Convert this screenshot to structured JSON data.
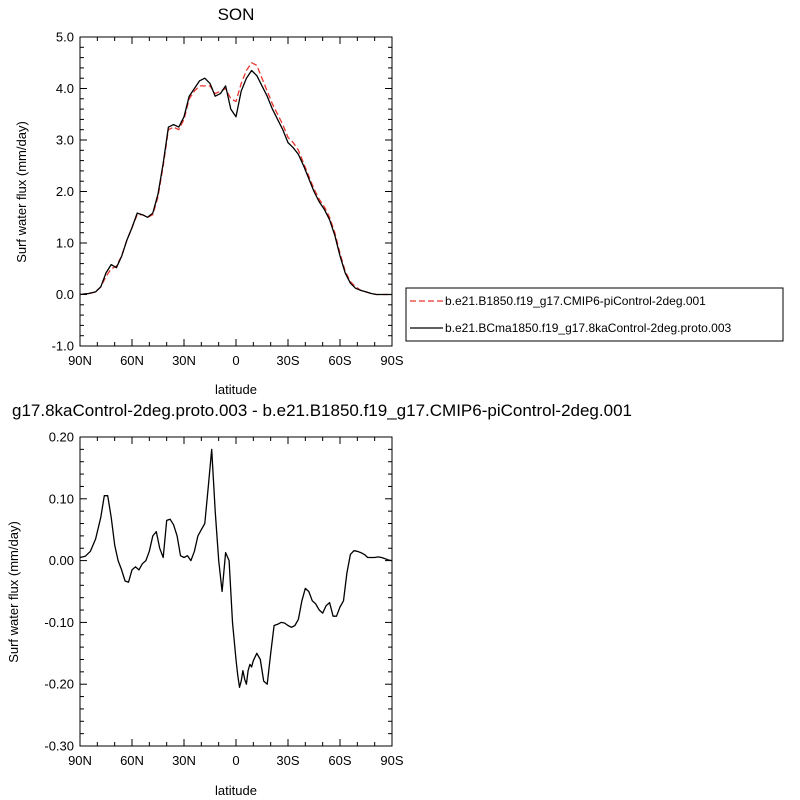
{
  "chart_data": [
    {
      "type": "line",
      "title": "SON",
      "xlabel": "latitude",
      "ylabel": "Surf water flux (mm/day)",
      "xlim": [
        90,
        -90
      ],
      "ylim": [
        -1.0,
        5.0
      ],
      "x_ticks": [
        90,
        60,
        30,
        0,
        -30,
        -60,
        -90
      ],
      "x_tick_labels": [
        "90N",
        "60N",
        "30N",
        "0",
        "30S",
        "60S",
        "90S"
      ],
      "y_ticks": [
        -1.0,
        0.0,
        1.0,
        2.0,
        3.0,
        4.0,
        5.0
      ],
      "y_tick_labels": [
        "-1.0",
        "0.0",
        "1.0",
        "2.0",
        "3.0",
        "4.0",
        "5.0"
      ],
      "legend_position": "right",
      "series": [
        {
          "name": "b.e21.B1850.f19_g17.CMIP6-piControl-2deg.001",
          "color": "#e8352e",
          "dash": "dashed",
          "x": [
            90,
            85,
            81,
            78,
            75,
            72,
            69,
            66,
            63,
            60,
            57,
            54,
            51,
            48,
            45,
            42,
            39,
            36,
            33,
            30,
            27,
            24,
            21,
            18,
            15,
            12,
            9,
            6,
            3,
            0,
            -3,
            -6,
            -9,
            -12,
            -15,
            -18,
            -21,
            -24,
            -27,
            -30,
            -33,
            -36,
            -39,
            -42,
            -45,
            -48,
            -51,
            -54,
            -57,
            -60,
            -63,
            -66,
            -69,
            -72,
            -75,
            -78,
            -81,
            -84,
            -87,
            -90
          ],
          "y": [
            0.0,
            0.02,
            0.05,
            0.15,
            0.35,
            0.5,
            0.55,
            0.75,
            1.05,
            1.3,
            1.55,
            1.55,
            1.5,
            1.55,
            1.9,
            2.5,
            3.2,
            3.25,
            3.2,
            3.4,
            3.8,
            3.95,
            4.05,
            4.05,
            4.05,
            3.9,
            3.95,
            4.0,
            3.8,
            3.75,
            4.1,
            4.35,
            4.5,
            4.45,
            4.2,
            3.95,
            3.7,
            3.5,
            3.3,
            3.05,
            2.95,
            2.8,
            2.55,
            2.3,
            2.05,
            1.85,
            1.7,
            1.5,
            1.2,
            0.8,
            0.45,
            0.25,
            0.15,
            0.08,
            0.05,
            0.02,
            0.0,
            0.0,
            0.0,
            0.0
          ]
        },
        {
          "name": "b.e21.BCma1850.f19_g17.8kaControl-2deg.proto.003",
          "color": "#000000",
          "dash": "solid",
          "x": [
            90,
            85,
            81,
            78,
            75,
            72,
            69,
            66,
            63,
            60,
            57,
            54,
            51,
            48,
            45,
            42,
            39,
            36,
            33,
            30,
            27,
            24,
            21,
            18,
            15,
            12,
            9,
            6,
            3,
            0,
            -3,
            -6,
            -9,
            -12,
            -15,
            -18,
            -21,
            -24,
            -27,
            -30,
            -33,
            -36,
            -39,
            -42,
            -45,
            -48,
            -51,
            -54,
            -57,
            -60,
            -63,
            -66,
            -69,
            -72,
            -75,
            -78,
            -81,
            -84,
            -87,
            -90
          ],
          "y": [
            0.0,
            0.02,
            0.05,
            0.15,
            0.42,
            0.58,
            0.52,
            0.74,
            1.05,
            1.3,
            1.58,
            1.55,
            1.5,
            1.58,
            1.95,
            2.55,
            3.25,
            3.3,
            3.25,
            3.45,
            3.85,
            4.0,
            4.15,
            4.2,
            4.1,
            3.85,
            3.9,
            4.05,
            3.6,
            3.45,
            3.95,
            4.2,
            4.35,
            4.25,
            4.05,
            3.85,
            3.6,
            3.4,
            3.2,
            2.95,
            2.85,
            2.72,
            2.5,
            2.25,
            2.0,
            1.8,
            1.65,
            1.45,
            1.15,
            0.75,
            0.42,
            0.22,
            0.12,
            0.08,
            0.05,
            0.02,
            0.0,
            0.0,
            0.0,
            0.0
          ]
        }
      ]
    },
    {
      "type": "line",
      "title": "g17.8kaControl-2deg.proto.003 - b.e21.B1850.f19_g17.CMIP6-piControl-2deg.001",
      "xlabel": "latitude",
      "ylabel": "Surf water flux (mm/day)",
      "xlim": [
        90,
        -90
      ],
      "ylim": [
        -0.3,
        0.2
      ],
      "x_ticks": [
        90,
        60,
        30,
        0,
        -30,
        -60,
        -90
      ],
      "x_tick_labels": [
        "90N",
        "60N",
        "30N",
        "0",
        "30S",
        "60S",
        "90S"
      ],
      "y_ticks": [
        -0.3,
        -0.2,
        -0.1,
        0.0,
        0.1,
        0.2
      ],
      "y_tick_labels": [
        "-0.30",
        "-0.20",
        "-0.10",
        "0.00",
        "0.10",
        "0.20"
      ],
      "series": [
        {
          "color": "#000000",
          "dash": "solid",
          "x": [
            90,
            87,
            84,
            81,
            78,
            76,
            74,
            72,
            70,
            68,
            66,
            64,
            62,
            60,
            58,
            56,
            54,
            52,
            50,
            48,
            46,
            44,
            42,
            40,
            38,
            36,
            34,
            32,
            30,
            28,
            26,
            24,
            22,
            20,
            18,
            16,
            15,
            14,
            12,
            10,
            8,
            6,
            4,
            2,
            0,
            -1,
            -2,
            -3,
            -4,
            -5,
            -6,
            -7,
            -8,
            -9,
            -10,
            -12,
            -14,
            -16,
            -18,
            -20,
            -22,
            -24,
            -26,
            -28,
            -30,
            -32,
            -34,
            -36,
            -38,
            -40,
            -42,
            -44,
            -46,
            -48,
            -50,
            -52,
            -54,
            -56,
            -58,
            -60,
            -62,
            -64,
            -66,
            -68,
            -70,
            -72,
            -74,
            -76,
            -78,
            -80,
            -82,
            -84,
            -86,
            -88,
            -90
          ],
          "y": [
            0.005,
            0.007,
            0.015,
            0.035,
            0.07,
            0.105,
            0.105,
            0.07,
            0.025,
            0.0,
            -0.015,
            -0.033,
            -0.035,
            -0.015,
            -0.01,
            -0.015,
            -0.005,
            0.0,
            0.015,
            0.04,
            0.047,
            0.02,
            0.005,
            0.065,
            0.067,
            0.058,
            0.04,
            0.008,
            0.005,
            0.008,
            0.0,
            0.015,
            0.04,
            0.05,
            0.06,
            0.12,
            0.15,
            0.18,
            0.08,
            0.0,
            -0.05,
            0.013,
            0.0,
            -0.1,
            -0.16,
            -0.185,
            -0.205,
            -0.195,
            -0.178,
            -0.192,
            -0.2,
            -0.178,
            -0.168,
            -0.172,
            -0.162,
            -0.15,
            -0.16,
            -0.195,
            -0.2,
            -0.15,
            -0.105,
            -0.103,
            -0.1,
            -0.101,
            -0.105,
            -0.108,
            -0.105,
            -0.095,
            -0.065,
            -0.045,
            -0.05,
            -0.065,
            -0.07,
            -0.08,
            -0.085,
            -0.073,
            -0.068,
            -0.09,
            -0.09,
            -0.075,
            -0.065,
            -0.02,
            0.01,
            0.016,
            0.015,
            0.013,
            0.01,
            0.005,
            0.005,
            0.005,
            0.006,
            0.005,
            0.003,
            0.001,
            0.0
          ]
        }
      ]
    }
  ]
}
